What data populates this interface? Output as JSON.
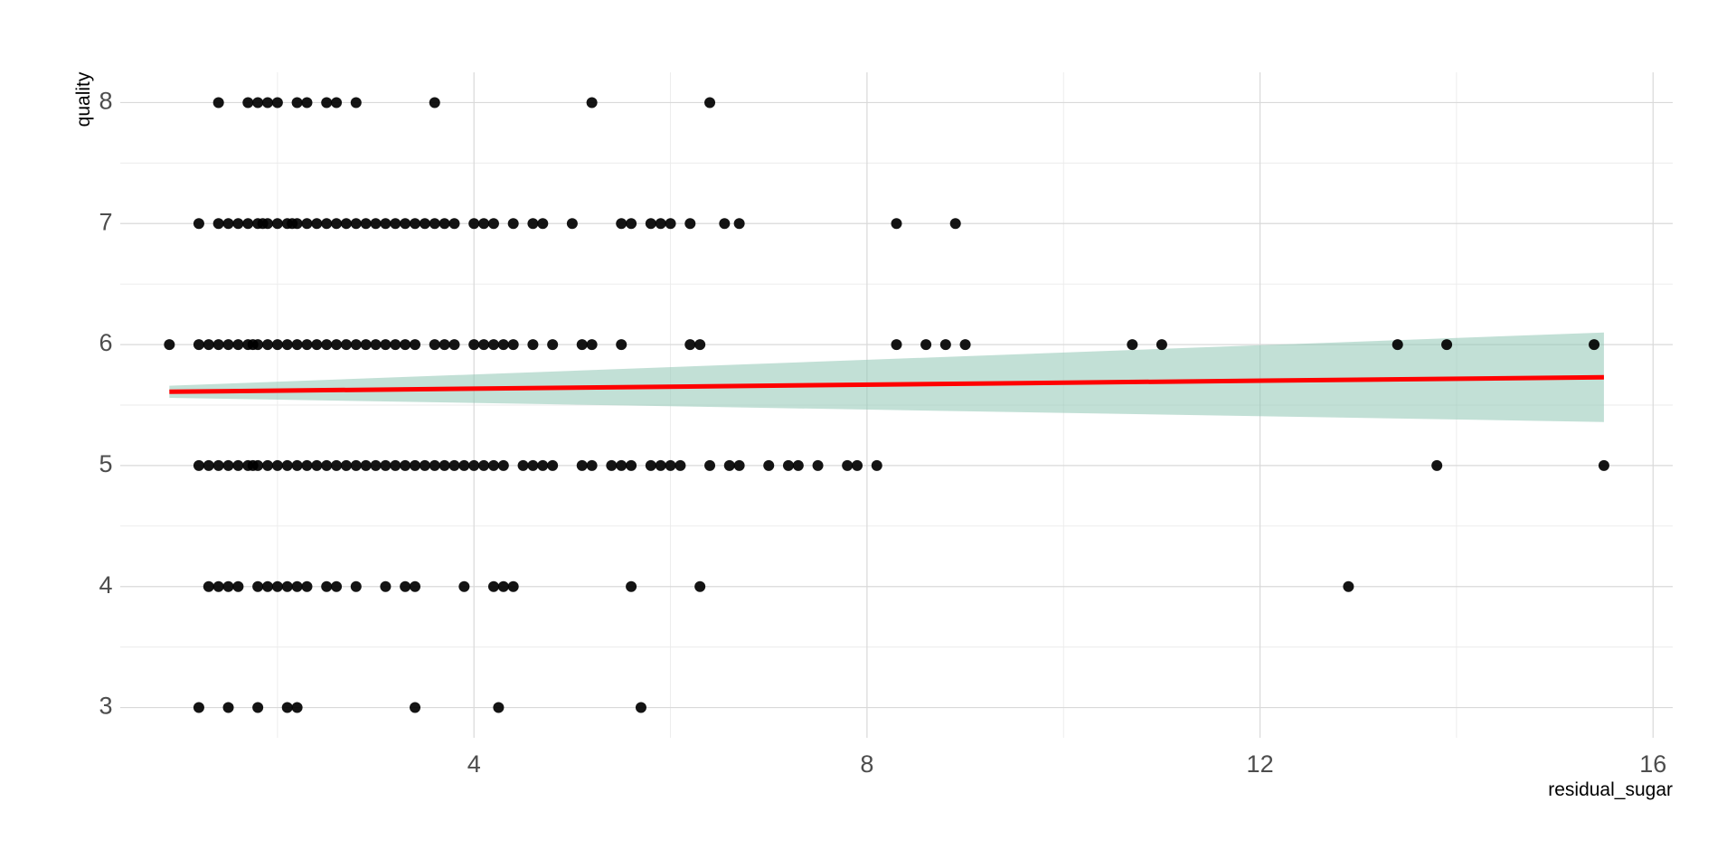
{
  "chart_data": {
    "type": "scatter",
    "title": "",
    "xlabel": "residual_sugar",
    "ylabel": "quality",
    "xlim": [
      0.4,
      16.2
    ],
    "ylim": [
      2.75,
      8.25
    ],
    "x_ticks": [
      4,
      8,
      12,
      16
    ],
    "x_tick_labels": [
      "4",
      "8",
      "12",
      "16"
    ],
    "y_ticks": [
      3,
      4,
      5,
      6,
      7,
      8
    ],
    "y_tick_labels": [
      "3",
      "4",
      "5",
      "6",
      "7",
      "8"
    ],
    "grid": true,
    "legend": "none",
    "colors": {
      "points": "#000000",
      "fit_line": "#ff0000",
      "confidence_band": "#8fc7b5"
    },
    "points": [
      {
        "x": 1.4,
        "y": 8
      },
      {
        "x": 1.7,
        "y": 8
      },
      {
        "x": 1.8,
        "y": 8
      },
      {
        "x": 1.9,
        "y": 8
      },
      {
        "x": 2.0,
        "y": 8
      },
      {
        "x": 2.2,
        "y": 8
      },
      {
        "x": 2.3,
        "y": 8
      },
      {
        "x": 2.5,
        "y": 8
      },
      {
        "x": 2.6,
        "y": 8
      },
      {
        "x": 2.8,
        "y": 8
      },
      {
        "x": 3.6,
        "y": 8
      },
      {
        "x": 5.2,
        "y": 8
      },
      {
        "x": 6.4,
        "y": 8
      },
      {
        "x": 1.2,
        "y": 7
      },
      {
        "x": 1.4,
        "y": 7
      },
      {
        "x": 1.5,
        "y": 7
      },
      {
        "x": 1.6,
        "y": 7
      },
      {
        "x": 1.7,
        "y": 7
      },
      {
        "x": 1.8,
        "y": 7
      },
      {
        "x": 1.85,
        "y": 7
      },
      {
        "x": 1.9,
        "y": 7
      },
      {
        "x": 2.0,
        "y": 7
      },
      {
        "x": 2.1,
        "y": 7
      },
      {
        "x": 2.15,
        "y": 7
      },
      {
        "x": 2.2,
        "y": 7
      },
      {
        "x": 2.3,
        "y": 7
      },
      {
        "x": 2.4,
        "y": 7
      },
      {
        "x": 2.5,
        "y": 7
      },
      {
        "x": 2.6,
        "y": 7
      },
      {
        "x": 2.7,
        "y": 7
      },
      {
        "x": 2.8,
        "y": 7
      },
      {
        "x": 2.9,
        "y": 7
      },
      {
        "x": 3.0,
        "y": 7
      },
      {
        "x": 3.1,
        "y": 7
      },
      {
        "x": 3.2,
        "y": 7
      },
      {
        "x": 3.3,
        "y": 7
      },
      {
        "x": 3.4,
        "y": 7
      },
      {
        "x": 3.5,
        "y": 7
      },
      {
        "x": 3.6,
        "y": 7
      },
      {
        "x": 3.7,
        "y": 7
      },
      {
        "x": 3.8,
        "y": 7
      },
      {
        "x": 4.0,
        "y": 7
      },
      {
        "x": 4.1,
        "y": 7
      },
      {
        "x": 4.2,
        "y": 7
      },
      {
        "x": 4.4,
        "y": 7
      },
      {
        "x": 4.6,
        "y": 7
      },
      {
        "x": 4.7,
        "y": 7
      },
      {
        "x": 5.0,
        "y": 7
      },
      {
        "x": 5.5,
        "y": 7
      },
      {
        "x": 5.6,
        "y": 7
      },
      {
        "x": 5.8,
        "y": 7
      },
      {
        "x": 5.9,
        "y": 7
      },
      {
        "x": 6.0,
        "y": 7
      },
      {
        "x": 6.2,
        "y": 7
      },
      {
        "x": 6.55,
        "y": 7
      },
      {
        "x": 6.7,
        "y": 7
      },
      {
        "x": 8.3,
        "y": 7
      },
      {
        "x": 8.9,
        "y": 7
      },
      {
        "x": 0.9,
        "y": 6
      },
      {
        "x": 1.2,
        "y": 6
      },
      {
        "x": 1.3,
        "y": 6
      },
      {
        "x": 1.4,
        "y": 6
      },
      {
        "x": 1.5,
        "y": 6
      },
      {
        "x": 1.6,
        "y": 6
      },
      {
        "x": 1.7,
        "y": 6
      },
      {
        "x": 1.75,
        "y": 6
      },
      {
        "x": 1.8,
        "y": 6
      },
      {
        "x": 1.9,
        "y": 6
      },
      {
        "x": 2.0,
        "y": 6
      },
      {
        "x": 2.1,
        "y": 6
      },
      {
        "x": 2.2,
        "y": 6
      },
      {
        "x": 2.3,
        "y": 6
      },
      {
        "x": 2.4,
        "y": 6
      },
      {
        "x": 2.5,
        "y": 6
      },
      {
        "x": 2.6,
        "y": 6
      },
      {
        "x": 2.7,
        "y": 6
      },
      {
        "x": 2.8,
        "y": 6
      },
      {
        "x": 2.9,
        "y": 6
      },
      {
        "x": 3.0,
        "y": 6
      },
      {
        "x": 3.1,
        "y": 6
      },
      {
        "x": 3.2,
        "y": 6
      },
      {
        "x": 3.3,
        "y": 6
      },
      {
        "x": 3.4,
        "y": 6
      },
      {
        "x": 3.6,
        "y": 6
      },
      {
        "x": 3.7,
        "y": 6
      },
      {
        "x": 3.8,
        "y": 6
      },
      {
        "x": 4.0,
        "y": 6
      },
      {
        "x": 4.1,
        "y": 6
      },
      {
        "x": 4.2,
        "y": 6
      },
      {
        "x": 4.3,
        "y": 6
      },
      {
        "x": 4.4,
        "y": 6
      },
      {
        "x": 4.6,
        "y": 6
      },
      {
        "x": 4.8,
        "y": 6
      },
      {
        "x": 5.1,
        "y": 6
      },
      {
        "x": 5.2,
        "y": 6
      },
      {
        "x": 5.5,
        "y": 6
      },
      {
        "x": 6.2,
        "y": 6
      },
      {
        "x": 6.3,
        "y": 6
      },
      {
        "x": 8.3,
        "y": 6
      },
      {
        "x": 8.6,
        "y": 6
      },
      {
        "x": 8.8,
        "y": 6
      },
      {
        "x": 9.0,
        "y": 6
      },
      {
        "x": 10.7,
        "y": 6
      },
      {
        "x": 11.0,
        "y": 6
      },
      {
        "x": 13.4,
        "y": 6
      },
      {
        "x": 13.9,
        "y": 6
      },
      {
        "x": 15.4,
        "y": 6
      },
      {
        "x": 1.2,
        "y": 5
      },
      {
        "x": 1.3,
        "y": 5
      },
      {
        "x": 1.4,
        "y": 5
      },
      {
        "x": 1.5,
        "y": 5
      },
      {
        "x": 1.6,
        "y": 5
      },
      {
        "x": 1.7,
        "y": 5
      },
      {
        "x": 1.75,
        "y": 5
      },
      {
        "x": 1.8,
        "y": 5
      },
      {
        "x": 1.9,
        "y": 5
      },
      {
        "x": 2.0,
        "y": 5
      },
      {
        "x": 2.1,
        "y": 5
      },
      {
        "x": 2.2,
        "y": 5
      },
      {
        "x": 2.3,
        "y": 5
      },
      {
        "x": 2.4,
        "y": 5
      },
      {
        "x": 2.5,
        "y": 5
      },
      {
        "x": 2.6,
        "y": 5
      },
      {
        "x": 2.7,
        "y": 5
      },
      {
        "x": 2.8,
        "y": 5
      },
      {
        "x": 2.9,
        "y": 5
      },
      {
        "x": 3.0,
        "y": 5
      },
      {
        "x": 3.1,
        "y": 5
      },
      {
        "x": 3.2,
        "y": 5
      },
      {
        "x": 3.3,
        "y": 5
      },
      {
        "x": 3.4,
        "y": 5
      },
      {
        "x": 3.5,
        "y": 5
      },
      {
        "x": 3.6,
        "y": 5
      },
      {
        "x": 3.7,
        "y": 5
      },
      {
        "x": 3.8,
        "y": 5
      },
      {
        "x": 3.9,
        "y": 5
      },
      {
        "x": 4.0,
        "y": 5
      },
      {
        "x": 4.1,
        "y": 5
      },
      {
        "x": 4.2,
        "y": 5
      },
      {
        "x": 4.3,
        "y": 5
      },
      {
        "x": 4.5,
        "y": 5
      },
      {
        "x": 4.6,
        "y": 5
      },
      {
        "x": 4.7,
        "y": 5
      },
      {
        "x": 4.8,
        "y": 5
      },
      {
        "x": 5.1,
        "y": 5
      },
      {
        "x": 5.2,
        "y": 5
      },
      {
        "x": 5.4,
        "y": 5
      },
      {
        "x": 5.5,
        "y": 5
      },
      {
        "x": 5.6,
        "y": 5
      },
      {
        "x": 5.8,
        "y": 5
      },
      {
        "x": 5.9,
        "y": 5
      },
      {
        "x": 6.0,
        "y": 5
      },
      {
        "x": 6.1,
        "y": 5
      },
      {
        "x": 6.4,
        "y": 5
      },
      {
        "x": 6.6,
        "y": 5
      },
      {
        "x": 6.7,
        "y": 5
      },
      {
        "x": 7.0,
        "y": 5
      },
      {
        "x": 7.2,
        "y": 5
      },
      {
        "x": 7.3,
        "y": 5
      },
      {
        "x": 7.5,
        "y": 5
      },
      {
        "x": 7.8,
        "y": 5
      },
      {
        "x": 7.9,
        "y": 5
      },
      {
        "x": 8.1,
        "y": 5
      },
      {
        "x": 13.8,
        "y": 5
      },
      {
        "x": 15.5,
        "y": 5
      },
      {
        "x": 1.3,
        "y": 4
      },
      {
        "x": 1.4,
        "y": 4
      },
      {
        "x": 1.5,
        "y": 4
      },
      {
        "x": 1.6,
        "y": 4
      },
      {
        "x": 1.8,
        "y": 4
      },
      {
        "x": 1.9,
        "y": 4
      },
      {
        "x": 2.0,
        "y": 4
      },
      {
        "x": 2.1,
        "y": 4
      },
      {
        "x": 2.2,
        "y": 4
      },
      {
        "x": 2.3,
        "y": 4
      },
      {
        "x": 2.5,
        "y": 4
      },
      {
        "x": 2.6,
        "y": 4
      },
      {
        "x": 2.8,
        "y": 4
      },
      {
        "x": 3.1,
        "y": 4
      },
      {
        "x": 3.3,
        "y": 4
      },
      {
        "x": 3.4,
        "y": 4
      },
      {
        "x": 3.9,
        "y": 4
      },
      {
        "x": 4.2,
        "y": 4
      },
      {
        "x": 4.3,
        "y": 4
      },
      {
        "x": 4.4,
        "y": 4
      },
      {
        "x": 5.6,
        "y": 4
      },
      {
        "x": 6.3,
        "y": 4
      },
      {
        "x": 12.9,
        "y": 4
      },
      {
        "x": 1.2,
        "y": 3
      },
      {
        "x": 1.5,
        "y": 3
      },
      {
        "x": 1.8,
        "y": 3
      },
      {
        "x": 2.1,
        "y": 3
      },
      {
        "x": 2.2,
        "y": 3
      },
      {
        "x": 3.4,
        "y": 3
      },
      {
        "x": 4.25,
        "y": 3
      },
      {
        "x": 5.7,
        "y": 3
      }
    ],
    "fit_line": {
      "x_start": 0.9,
      "y_start": 5.61,
      "x_end": 15.5,
      "y_end": 5.73
    },
    "confidence_band": {
      "x_start": 0.9,
      "lower_start": 5.56,
      "upper_start": 5.66,
      "x_end": 15.5,
      "lower_end": 5.36,
      "upper_end": 6.1
    }
  }
}
